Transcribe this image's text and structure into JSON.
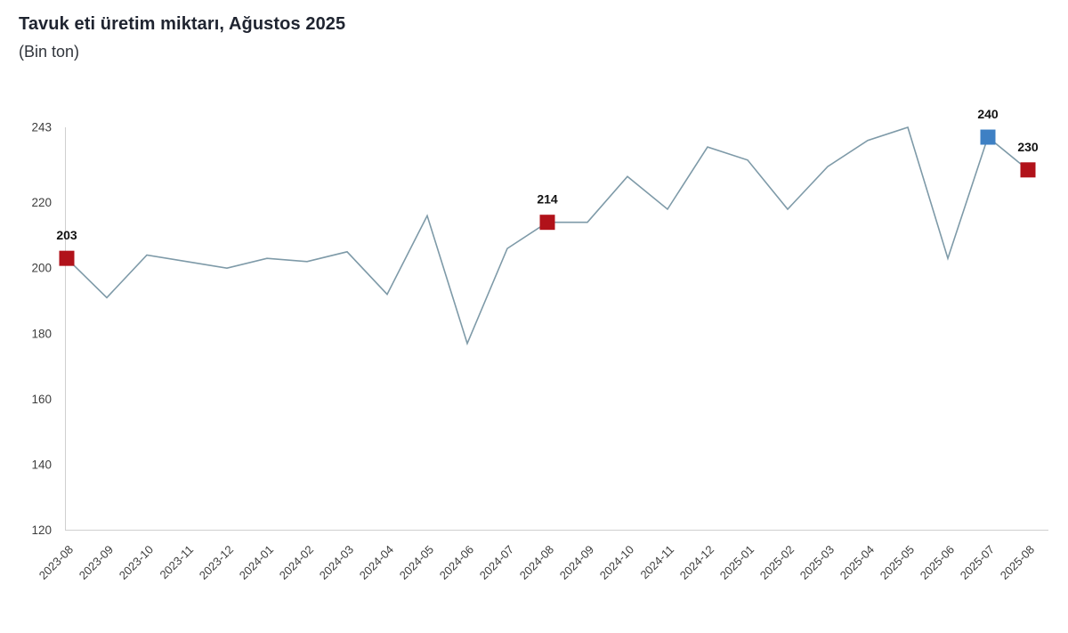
{
  "header": {
    "title": "Tavuk eti üretim miktarı, Ağustos 2025",
    "subtitle": "(Bin ton)"
  },
  "chart_data": {
    "type": "line",
    "title": "Tavuk eti üretim miktarı, Ağustos 2025",
    "subtitle": "(Bin ton)",
    "xlabel": "",
    "ylabel": "",
    "x": [
      "2023-08",
      "2023-09",
      "2023-10",
      "2023-11",
      "2023-12",
      "2024-01",
      "2024-02",
      "2024-03",
      "2024-04",
      "2024-05",
      "2024-06",
      "2024-07",
      "2024-08",
      "2024-09",
      "2024-10",
      "2024-11",
      "2024-12",
      "2025-01",
      "2025-02",
      "2025-03",
      "2025-04",
      "2025-05",
      "2025-06",
      "2025-07",
      "2025-08"
    ],
    "values": [
      203,
      191,
      204,
      202,
      200,
      203,
      202,
      205,
      192,
      216,
      177,
      206,
      214,
      214,
      228,
      218,
      237,
      233,
      218,
      231,
      239,
      243,
      203,
      240,
      230
    ],
    "ylim": [
      120,
      243
    ],
    "yticks": [
      120,
      140,
      160,
      180,
      200,
      220,
      243
    ],
    "grid": false,
    "legend": "none",
    "line_color": "#7e9aa8",
    "axis_color": "#cfcfcf",
    "annotations": [
      {
        "month": "2023-08",
        "value": 203,
        "label": "203",
        "marker": "square",
        "marker_color": "#b1121a"
      },
      {
        "month": "2024-08",
        "value": 214,
        "label": "214",
        "marker": "square",
        "marker_color": "#b1121a"
      },
      {
        "month": "2025-07",
        "value": 240,
        "label": "240",
        "marker": "square",
        "marker_color": "#3e80c4"
      },
      {
        "month": "2025-08",
        "value": 230,
        "label": "230",
        "marker": "square",
        "marker_color": "#b1121a"
      }
    ]
  }
}
